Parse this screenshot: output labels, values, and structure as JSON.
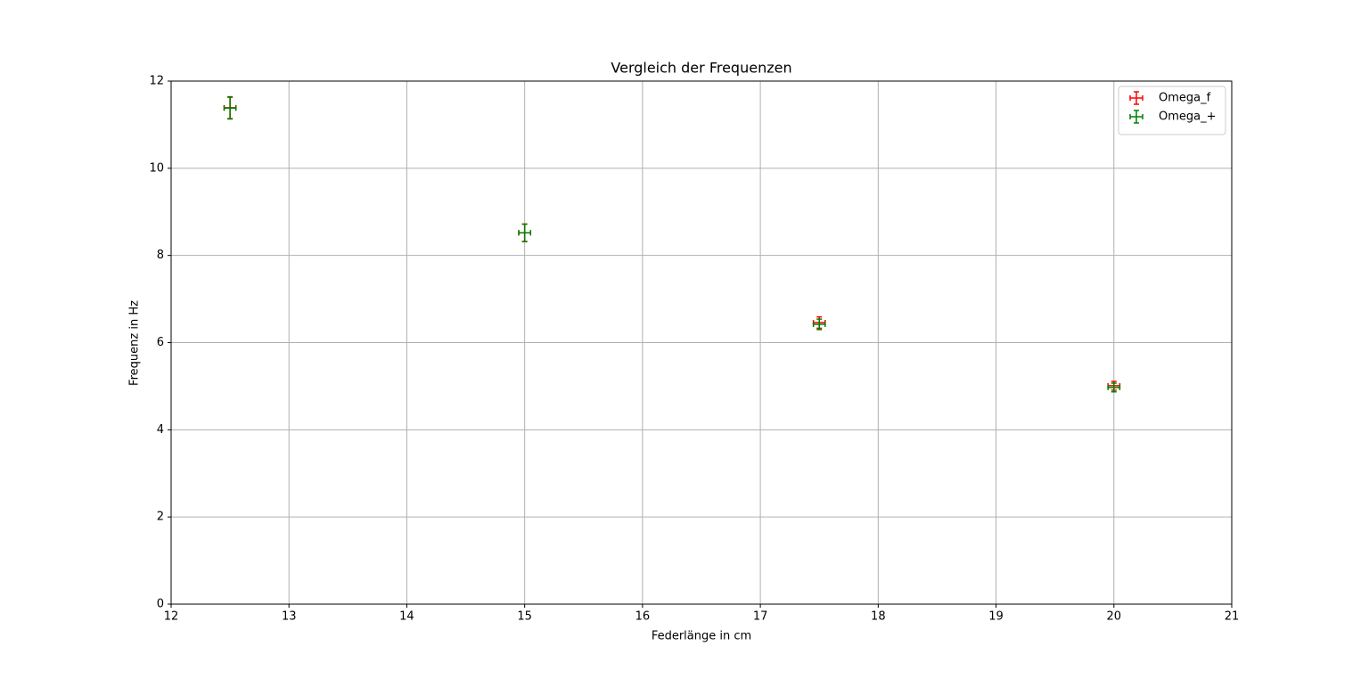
{
  "chart_data": {
    "type": "errorbar",
    "title": "Vergleich der Frequenzen",
    "x_label": "Federlänge in cm",
    "y_label": "Frequenz in Hz",
    "xlim": [
      12,
      21
    ],
    "xticks": [
      12,
      13,
      14,
      15,
      16,
      17,
      18,
      19,
      20,
      21
    ],
    "ylim": [
      0,
      12
    ],
    "yticks": [
      0,
      2,
      4,
      6,
      8,
      10,
      12
    ],
    "grid": true,
    "legend": "upper right",
    "series": [
      {
        "name": "Omega_f",
        "color": "#ff0000",
        "x": [
          12.5,
          15,
          17.5,
          20
        ],
        "values": [
          11.39,
          8.52,
          6.46,
          5.01
        ],
        "xerr": [
          0.05,
          0.05,
          0.05,
          0.05
        ],
        "yerr": [
          0.25,
          0.2,
          0.13,
          0.1
        ]
      },
      {
        "name": "Omega_+",
        "color": "#008000",
        "x": [
          12.5,
          15,
          17.5,
          20
        ],
        "values": [
          11.38,
          8.52,
          6.42,
          4.97
        ],
        "xerr": [
          0.05,
          0.05,
          0.05,
          0.05
        ],
        "yerr": [
          0.25,
          0.2,
          0.12,
          0.1
        ]
      }
    ]
  }
}
